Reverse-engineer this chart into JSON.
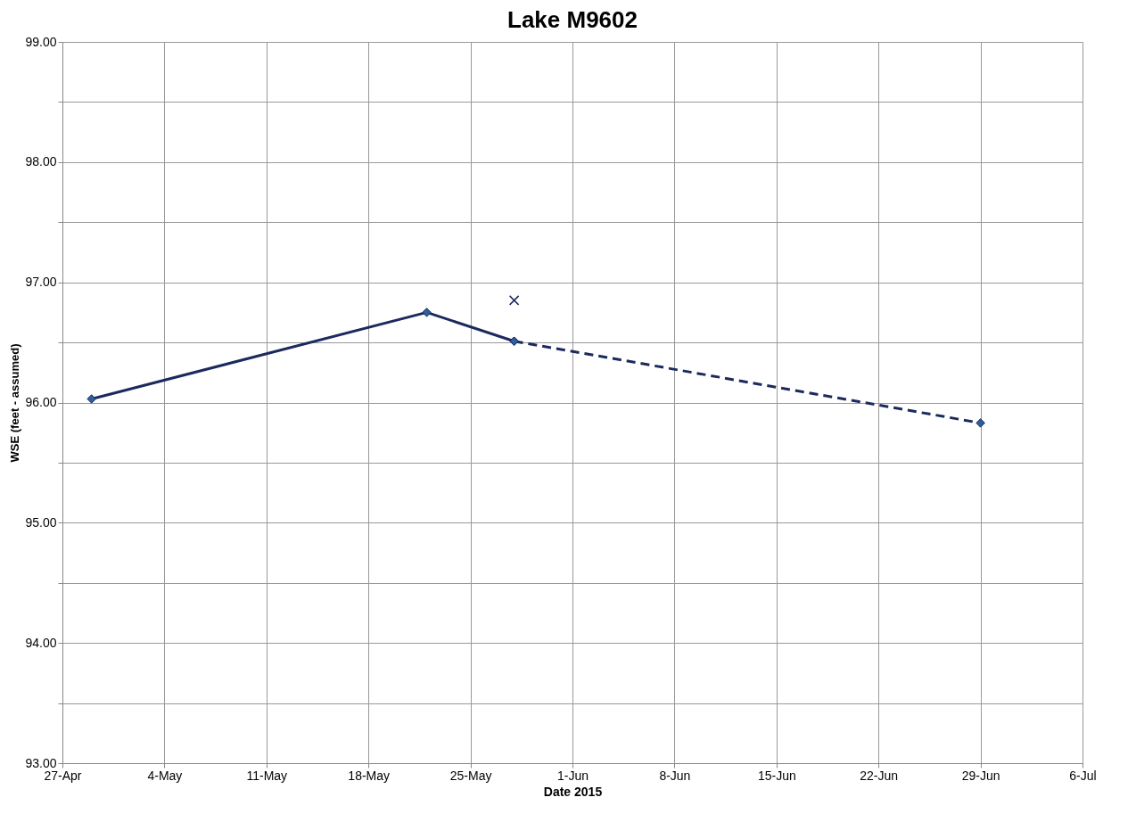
{
  "chart_data": {
    "type": "line",
    "title": "Lake M9602",
    "xlabel": "Date 2015",
    "ylabel": "WSE (feet - assumed)",
    "xlim": [
      "2015-04-27",
      "2015-07-06"
    ],
    "xticks": [
      {
        "value": "2015-04-27",
        "label": "27-Apr"
      },
      {
        "value": "2015-05-04",
        "label": "4-May"
      },
      {
        "value": "2015-05-11",
        "label": "11-May"
      },
      {
        "value": "2015-05-18",
        "label": "18-May"
      },
      {
        "value": "2015-05-25",
        "label": "25-May"
      },
      {
        "value": "2015-06-01",
        "label": "1-Jun"
      },
      {
        "value": "2015-06-08",
        "label": "8-Jun"
      },
      {
        "value": "2015-06-15",
        "label": "15-Jun"
      },
      {
        "value": "2015-06-22",
        "label": "22-Jun"
      },
      {
        "value": "2015-06-29",
        "label": "29-Jun"
      },
      {
        "value": "2015-07-06",
        "label": "6-Jul"
      }
    ],
    "ylim": [
      93,
      99
    ],
    "yticks": [
      {
        "value": 93,
        "label": "93.00"
      },
      {
        "value": 93.5,
        "label": null
      },
      {
        "value": 94,
        "label": "94.00"
      },
      {
        "value": 94.5,
        "label": null
      },
      {
        "value": 95,
        "label": "95.00"
      },
      {
        "value": 95.5,
        "label": null
      },
      {
        "value": 96,
        "label": "96.00"
      },
      {
        "value": 96.5,
        "label": null
      },
      {
        "value": 97,
        "label": "97.00"
      },
      {
        "value": 97.5,
        "label": null
      },
      {
        "value": 98,
        "label": "98.00"
      },
      {
        "value": 98.5,
        "label": null
      },
      {
        "value": 99,
        "label": "99.00"
      }
    ],
    "grid": true,
    "series": [
      {
        "type": "line",
        "color": "#1b2a5e",
        "marker": "diamond",
        "line_style": "solid",
        "x": [
          "2015-04-29",
          "2015-05-22",
          "2015-05-28"
        ],
        "values": [
          96.03,
          96.75,
          96.51
        ]
      },
      {
        "type": "line",
        "color": "#1b2a5e",
        "marker": "diamond",
        "line_style": "dashed",
        "x": [
          "2015-05-28",
          "2015-06-29"
        ],
        "values": [
          96.51,
          95.83
        ]
      },
      {
        "type": "scatter",
        "color": "#1b2a5e",
        "marker": "cross",
        "x": [
          "2015-05-28"
        ],
        "values": [
          96.85
        ]
      }
    ]
  }
}
